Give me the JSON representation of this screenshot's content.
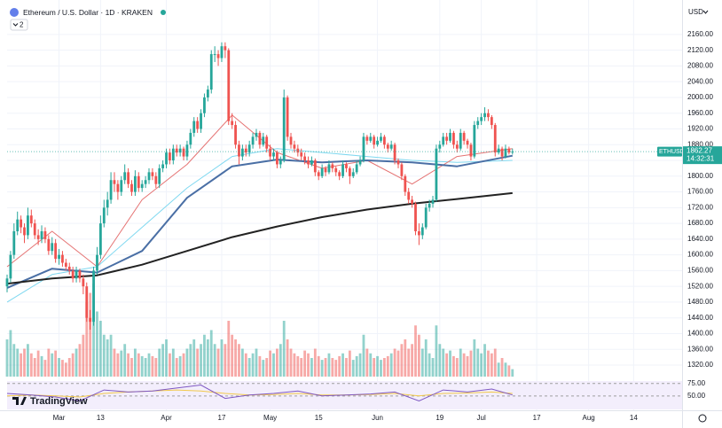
{
  "chart_data": {
    "type": "candlestick",
    "title": "Ethereum / U.S. Dollar · 1D · KRAKEN",
    "indicator_count": 2,
    "currency": "USD",
    "symbol": "ETHUSD",
    "countdown": "14:32:31",
    "logo": "TradingView",
    "up_color": "#26a69a",
    "down_color": "#ef5350",
    "grid": true,
    "xlim": [
      0,
      195
    ],
    "xticks": [
      {
        "value": 15,
        "label": "Mar"
      },
      {
        "value": 27,
        "label": "13"
      },
      {
        "value": 46,
        "label": "Apr"
      },
      {
        "value": 62,
        "label": "17"
      },
      {
        "value": 76,
        "label": "May"
      },
      {
        "value": 90,
        "label": "15"
      },
      {
        "value": 107,
        "label": "Jun"
      },
      {
        "value": 125,
        "label": "19"
      },
      {
        "value": 137,
        "label": "Jul"
      },
      {
        "value": 153,
        "label": "17"
      },
      {
        "value": 168,
        "label": "Aug"
      },
      {
        "value": 181,
        "label": "14"
      }
    ],
    "ylim": [
      1284,
      2198
    ],
    "yticks": [
      {
        "value": 1320,
        "label": "1320.00"
      },
      {
        "value": 1360,
        "label": "1360.00"
      },
      {
        "value": 1400,
        "label": "1400.00"
      },
      {
        "value": 1440,
        "label": "1440.00"
      },
      {
        "value": 1480,
        "label": "1480.00"
      },
      {
        "value": 1520,
        "label": "1520.00"
      },
      {
        "value": 1560,
        "label": "1560.00"
      },
      {
        "value": 1600,
        "label": "1600.00"
      },
      {
        "value": 1640,
        "label": "1640.00"
      },
      {
        "value": 1680,
        "label": "1680.00"
      },
      {
        "value": 1720,
        "label": "1720.00"
      },
      {
        "value": 1760,
        "label": "1760.00"
      },
      {
        "value": 1800,
        "label": "1800.00"
      },
      {
        "value": 1840,
        "label": "1840.00"
      },
      {
        "value": 1880,
        "label": "1880.00"
      },
      {
        "value": 1920,
        "label": "1920.00"
      },
      {
        "value": 1960,
        "label": "1960.00"
      },
      {
        "value": 2000,
        "label": "2000.00"
      },
      {
        "value": 2040,
        "label": "2040.00"
      },
      {
        "value": 2080,
        "label": "2080.00"
      },
      {
        "value": 2120,
        "label": "2120.00"
      },
      {
        "value": 2160,
        "label": "2160.00"
      }
    ],
    "candles": [
      [
        1520,
        1550,
        1505,
        1540
      ],
      [
        1540,
        1610,
        1530,
        1600
      ],
      [
        1600,
        1680,
        1590,
        1660
      ],
      [
        1660,
        1710,
        1650,
        1690
      ],
      [
        1690,
        1700,
        1655,
        1670
      ],
      [
        1670,
        1680,
        1630,
        1650
      ],
      [
        1650,
        1720,
        1640,
        1700
      ],
      [
        1700,
        1715,
        1670,
        1680
      ],
      [
        1680,
        1690,
        1640,
        1650
      ],
      [
        1650,
        1665,
        1625,
        1640
      ],
      [
        1640,
        1675,
        1630,
        1660
      ],
      [
        1660,
        1670,
        1630,
        1640
      ],
      [
        1640,
        1650,
        1600,
        1610
      ],
      [
        1610,
        1645,
        1600,
        1630
      ],
      [
        1630,
        1640,
        1580,
        1590
      ],
      [
        1590,
        1615,
        1575,
        1600
      ],
      [
        1600,
        1610,
        1570,
        1580
      ],
      [
        1580,
        1590,
        1560,
        1570
      ],
      [
        1570,
        1580,
        1550,
        1560
      ],
      [
        1560,
        1570,
        1530,
        1540
      ],
      [
        1540,
        1570,
        1530,
        1560
      ],
      [
        1560,
        1565,
        1530,
        1540
      ],
      [
        1540,
        1550,
        1500,
        1520
      ],
      [
        1520,
        1530,
        1430,
        1440
      ],
      [
        1440,
        1460,
        1410,
        1430
      ],
      [
        1430,
        1570,
        1420,
        1560
      ],
      [
        1560,
        1620,
        1550,
        1600
      ],
      [
        1600,
        1700,
        1590,
        1680
      ],
      [
        1680,
        1740,
        1670,
        1720
      ],
      [
        1720,
        1760,
        1700,
        1740
      ],
      [
        1740,
        1810,
        1730,
        1790
      ],
      [
        1790,
        1810,
        1760,
        1780
      ],
      [
        1780,
        1790,
        1740,
        1760
      ],
      [
        1760,
        1800,
        1750,
        1790
      ],
      [
        1790,
        1830,
        1780,
        1810
      ],
      [
        1810,
        1820,
        1770,
        1780
      ],
      [
        1780,
        1790,
        1750,
        1760
      ],
      [
        1760,
        1815,
        1750,
        1800
      ],
      [
        1800,
        1810,
        1760,
        1770
      ],
      [
        1770,
        1790,
        1760,
        1780
      ],
      [
        1780,
        1800,
        1770,
        1790
      ],
      [
        1790,
        1820,
        1780,
        1810
      ],
      [
        1810,
        1820,
        1790,
        1800
      ],
      [
        1800,
        1810,
        1770,
        1780
      ],
      [
        1780,
        1830,
        1770,
        1820
      ],
      [
        1820,
        1840,
        1810,
        1830
      ],
      [
        1830,
        1870,
        1820,
        1860
      ],
      [
        1860,
        1870,
        1830,
        1840
      ],
      [
        1840,
        1880,
        1830,
        1870
      ],
      [
        1870,
        1880,
        1850,
        1860
      ],
      [
        1860,
        1880,
        1850,
        1870
      ],
      [
        1870,
        1875,
        1840,
        1850
      ],
      [
        1850,
        1890,
        1840,
        1880
      ],
      [
        1880,
        1920,
        1870,
        1910
      ],
      [
        1910,
        1950,
        1900,
        1940
      ],
      [
        1940,
        1950,
        1910,
        1920
      ],
      [
        1920,
        1970,
        1910,
        1960
      ],
      [
        1960,
        2010,
        1950,
        2000
      ],
      [
        2000,
        2030,
        1990,
        2020
      ],
      [
        2020,
        2120,
        2010,
        2110
      ],
      [
        2110,
        2130,
        2090,
        2110
      ],
      [
        2110,
        2120,
        2080,
        2100
      ],
      [
        2100,
        2140,
        2090,
        2130
      ],
      [
        2130,
        2140,
        2100,
        2120
      ],
      [
        2120,
        2125,
        1930,
        1940
      ],
      [
        1940,
        1960,
        1920,
        1930
      ],
      [
        1930,
        1940,
        1870,
        1880
      ],
      [
        1880,
        1890,
        1830,
        1850
      ],
      [
        1850,
        1880,
        1840,
        1870
      ],
      [
        1870,
        1880,
        1850,
        1860
      ],
      [
        1860,
        1890,
        1850,
        1880
      ],
      [
        1880,
        1910,
        1870,
        1900
      ],
      [
        1900,
        1920,
        1890,
        1910
      ],
      [
        1910,
        1915,
        1870,
        1880
      ],
      [
        1880,
        1910,
        1875,
        1900
      ],
      [
        1900,
        1905,
        1860,
        1870
      ],
      [
        1870,
        1880,
        1840,
        1850
      ],
      [
        1850,
        1870,
        1840,
        1860
      ],
      [
        1860,
        1865,
        1820,
        1830
      ],
      [
        1830,
        1850,
        1820,
        1840
      ],
      [
        1840,
        2020,
        1835,
        2000
      ],
      [
        2000,
        2005,
        1890,
        1900
      ],
      [
        1900,
        1910,
        1870,
        1880
      ],
      [
        1880,
        1890,
        1860,
        1870
      ],
      [
        1870,
        1880,
        1850,
        1860
      ],
      [
        1860,
        1870,
        1840,
        1850
      ],
      [
        1850,
        1860,
        1830,
        1840
      ],
      [
        1840,
        1850,
        1820,
        1830
      ],
      [
        1830,
        1850,
        1825,
        1840
      ],
      [
        1840,
        1845,
        1800,
        1810
      ],
      [
        1810,
        1815,
        1790,
        1800
      ],
      [
        1800,
        1830,
        1795,
        1820
      ],
      [
        1820,
        1825,
        1800,
        1810
      ],
      [
        1810,
        1840,
        1805,
        1830
      ],
      [
        1830,
        1835,
        1810,
        1820
      ],
      [
        1820,
        1825,
        1800,
        1810
      ],
      [
        1810,
        1815,
        1790,
        1800
      ],
      [
        1800,
        1840,
        1795,
        1830
      ],
      [
        1830,
        1835,
        1810,
        1820
      ],
      [
        1820,
        1825,
        1780,
        1800
      ],
      [
        1800,
        1820,
        1795,
        1810
      ],
      [
        1810,
        1840,
        1805,
        1830
      ],
      [
        1830,
        1850,
        1825,
        1840
      ],
      [
        1840,
        1910,
        1835,
        1900
      ],
      [
        1900,
        1905,
        1880,
        1890
      ],
      [
        1890,
        1910,
        1885,
        1900
      ],
      [
        1900,
        1905,
        1870,
        1880
      ],
      [
        1880,
        1900,
        1875,
        1890
      ],
      [
        1890,
        1910,
        1885,
        1900
      ],
      [
        1900,
        1905,
        1870,
        1880
      ],
      [
        1880,
        1885,
        1860,
        1870
      ],
      [
        1870,
        1890,
        1865,
        1880
      ],
      [
        1880,
        1885,
        1830,
        1840
      ],
      [
        1840,
        1845,
        1820,
        1830
      ],
      [
        1830,
        1835,
        1790,
        1800
      ],
      [
        1800,
        1805,
        1750,
        1760
      ],
      [
        1760,
        1770,
        1730,
        1740
      ],
      [
        1740,
        1750,
        1720,
        1730
      ],
      [
        1730,
        1735,
        1650,
        1660
      ],
      [
        1660,
        1680,
        1625,
        1650
      ],
      [
        1650,
        1680,
        1640,
        1670
      ],
      [
        1670,
        1730,
        1665,
        1720
      ],
      [
        1720,
        1740,
        1710,
        1730
      ],
      [
        1730,
        1750,
        1720,
        1740
      ],
      [
        1740,
        1880,
        1735,
        1870
      ],
      [
        1870,
        1890,
        1860,
        1880
      ],
      [
        1880,
        1910,
        1875,
        1900
      ],
      [
        1900,
        1910,
        1880,
        1890
      ],
      [
        1890,
        1920,
        1885,
        1910
      ],
      [
        1910,
        1915,
        1870,
        1880
      ],
      [
        1880,
        1890,
        1860,
        1870
      ],
      [
        1870,
        1920,
        1865,
        1910
      ],
      [
        1910,
        1915,
        1880,
        1890
      ],
      [
        1890,
        1895,
        1870,
        1880
      ],
      [
        1880,
        1885,
        1840,
        1850
      ],
      [
        1850,
        1940,
        1845,
        1930
      ],
      [
        1930,
        1950,
        1920,
        1940
      ],
      [
        1940,
        1960,
        1930,
        1950
      ],
      [
        1950,
        1975,
        1940,
        1960
      ],
      [
        1960,
        1970,
        1940,
        1950
      ],
      [
        1950,
        1955,
        1920,
        1930
      ],
      [
        1930,
        1935,
        1850,
        1860
      ],
      [
        1860,
        1880,
        1855,
        1870
      ],
      [
        1870,
        1875,
        1840,
        1850
      ],
      [
        1850,
        1880,
        1845,
        1870
      ],
      [
        1870,
        1875,
        1855,
        1860
      ],
      [
        1860,
        1870,
        1855,
        1862.27
      ]
    ],
    "volume_lim": [
      0,
      100
    ],
    "volume": [
      40,
      50,
      35,
      30,
      25,
      30,
      35,
      25,
      20,
      28,
      22,
      18,
      30,
      25,
      28,
      20,
      18,
      15,
      20,
      25,
      30,
      35,
      45,
      80,
      90,
      100,
      70,
      60,
      45,
      40,
      45,
      30,
      25,
      28,
      35,
      25,
      20,
      30,
      25,
      22,
      20,
      25,
      22,
      20,
      30,
      35,
      40,
      25,
      30,
      20,
      22,
      25,
      30,
      35,
      40,
      30,
      35,
      45,
      40,
      50,
      35,
      30,
      40,
      35,
      60,
      45,
      40,
      35,
      30,
      25,
      20,
      25,
      30,
      22,
      18,
      20,
      28,
      25,
      30,
      35,
      60,
      40,
      30,
      25,
      22,
      20,
      28,
      25,
      20,
      30,
      22,
      18,
      20,
      25,
      20,
      18,
      22,
      25,
      20,
      28,
      18,
      22,
      25,
      45,
      30,
      25,
      20,
      22,
      18,
      20,
      22,
      25,
      30,
      28,
      35,
      40,
      30,
      35,
      55,
      45,
      30,
      40,
      25,
      20,
      55,
      35,
      30,
      25,
      28,
      22,
      20,
      30,
      25,
      22,
      28,
      40,
      30,
      25,
      35,
      28,
      25,
      30,
      15,
      20,
      15,
      12,
      8
    ],
    "ma_days": [
      0,
      13,
      26,
      39,
      52,
      65,
      78,
      91,
      104,
      117,
      130,
      146
    ],
    "ma_series": [
      {
        "color": "#7fd8f0",
        "width": 1,
        "values": [
          1480,
          1550,
          1570,
          1670,
          1770,
          1850,
          1870,
          1860,
          1850,
          1840,
          1835,
          1840
        ]
      },
      {
        "color": "#e57373",
        "width": 1,
        "values": [
          1570,
          1660,
          1570,
          1740,
          1830,
          1955,
          1860,
          1820,
          1840,
          1780,
          1850,
          1870
        ]
      },
      {
        "color": "#4a6fa5",
        "width": 2,
        "values": [
          1516,
          1565,
          1555,
          1610,
          1745,
          1825,
          1842,
          1835,
          1840,
          1835,
          1825,
          1852
        ]
      },
      {
        "color": "#222222",
        "width": 2,
        "values": [
          1527,
          1540,
          1548,
          1575,
          1610,
          1645,
          1672,
          1696,
          1715,
          1730,
          1742,
          1757
        ]
      }
    ],
    "rsi": {
      "ylim": [
        23,
        80
      ],
      "yticks": [
        {
          "value": 75,
          "label": "75.00"
        },
        {
          "value": 50,
          "label": "50.00"
        }
      ],
      "x": [
        0,
        7,
        14,
        21,
        28,
        35,
        42,
        49,
        56,
        63,
        70,
        77,
        84,
        91,
        98,
        105,
        112,
        119,
        126,
        133,
        140,
        146
      ],
      "series": [
        {
          "color": "#f2c94c",
          "values": [
            50,
            52,
            50,
            48,
            55,
            58,
            60,
            62,
            60,
            55,
            52,
            53,
            55,
            52,
            52,
            53,
            55,
            50,
            55,
            56,
            58,
            55
          ]
        },
        {
          "color": "#7e57c2",
          "values": [
            55,
            52,
            48,
            40,
            62,
            58,
            60,
            66,
            72,
            45,
            52,
            55,
            60,
            50,
            52,
            54,
            58,
            40,
            62,
            58,
            64,
            52
          ]
        }
      ]
    }
  }
}
